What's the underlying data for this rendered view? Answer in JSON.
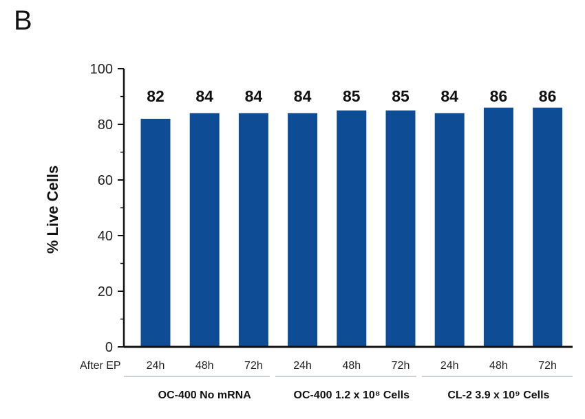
{
  "panel_label": "B",
  "chart_data": {
    "type": "bar",
    "ylabel": "% Live Cells",
    "xlabel": "",
    "row_label": "After EP",
    "ylim": [
      0,
      100
    ],
    "yticks": [
      0,
      20,
      40,
      60,
      80,
      100
    ],
    "categories": [
      "24h",
      "48h",
      "72h",
      "24h",
      "48h",
      "72h",
      "24h",
      "48h",
      "72h"
    ],
    "values": [
      82,
      84,
      84,
      84,
      85,
      85,
      84,
      86,
      86
    ],
    "data_labels": [
      "82",
      "84",
      "84",
      "84",
      "85",
      "85",
      "84",
      "86",
      "86"
    ],
    "groups": [
      {
        "name": "OC-400 No mRNA",
        "span": [
          0,
          2
        ]
      },
      {
        "name": "OC-400 1.2 x 10⁸ Cells",
        "span": [
          3,
          5
        ]
      },
      {
        "name": "CL-2 3.9 x 10⁹ Cells",
        "span": [
          6,
          8
        ]
      }
    ],
    "bar_color": "#0f4c96",
    "grid": false,
    "legend": "none"
  }
}
